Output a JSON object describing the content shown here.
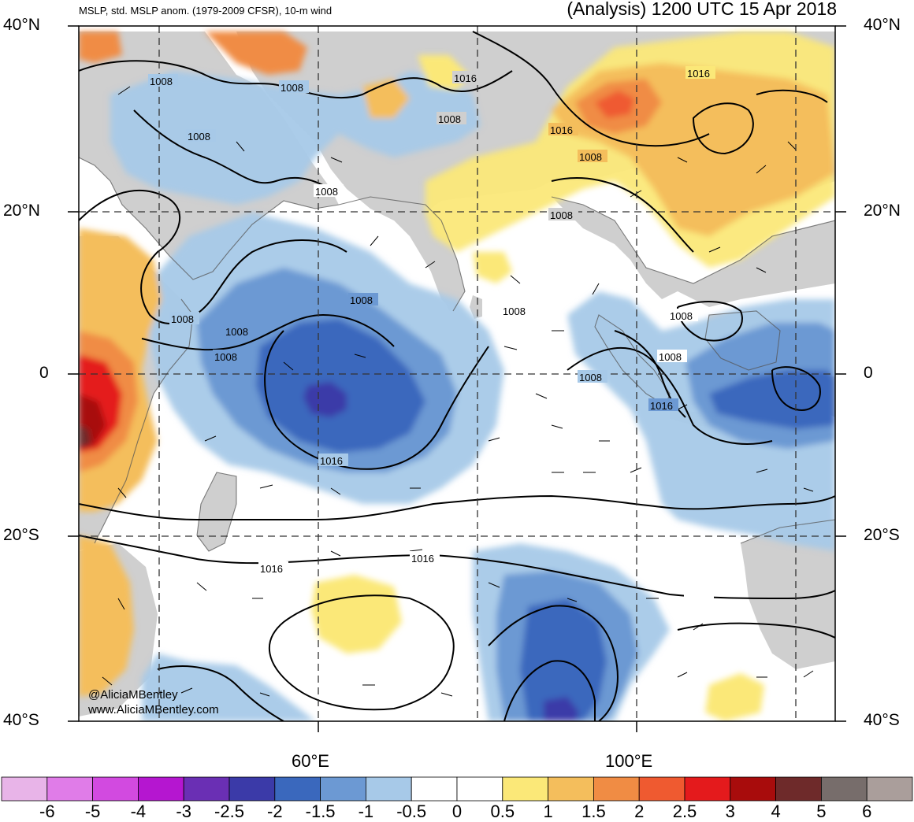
{
  "header": {
    "left_title": "MSLP, std. MSLP anom. (1979-2009 CFSR), 10-m wind",
    "right_title": "(Analysis) 1200 UTC 15 Apr 2018"
  },
  "axes": {
    "lat_labels": [
      "40°N",
      "20°N",
      "0",
      "20°S",
      "40°S"
    ],
    "lon_labels": [
      "60°E",
      "100°E"
    ],
    "extent": {
      "lon_min": 40,
      "lon_max": 135,
      "lat_min": -40,
      "lat_max": 40
    }
  },
  "isobars": {
    "labels": [
      "1008",
      "1008",
      "1008",
      "1016",
      "1008",
      "1016",
      "1016",
      "1008",
      "1008",
      "1008",
      "1008",
      "1008",
      "1008",
      "1008",
      "1008",
      "1008",
      "1008",
      "1008",
      "1016",
      "1016",
      "1016",
      "1016"
    ]
  },
  "credit": {
    "handle": "@AliciaMBentley",
    "website": "www.AliciaMBentley.com"
  },
  "colorbar": {
    "colors": [
      "#e8b4e8",
      "#e07ce8",
      "#d24ae0",
      "#b516d0",
      "#6a2fb4",
      "#3b3aa8",
      "#3a68bd",
      "#6c99d3",
      "#a7c9e8",
      "#ffffff",
      "#ffffff",
      "#fbe878",
      "#f4be5c",
      "#f08c44",
      "#ef5a30",
      "#e41a1c",
      "#a80c0c",
      "#6e2a2a",
      "#776d6b",
      "#aa9e9b"
    ],
    "labels": [
      "-6",
      "-5",
      "-4",
      "-3",
      "-2.5",
      "-2",
      "-1.5",
      "-1",
      "-0.5",
      "0",
      "0.5",
      "1",
      "1.5",
      "2",
      "2.5",
      "3",
      "4",
      "5",
      "6"
    ]
  },
  "legend_colors": {
    "land_gray": "#cfcfcf",
    "yellow": "#fbe878",
    "light_orange": "#f4be5c",
    "orange": "#f08c44",
    "red": "#e41a1c",
    "dark_red": "#a80c0c",
    "maroon": "#6e2a2a",
    "light_blue": "#a7c9e8",
    "mid_blue": "#6c99d3",
    "blue": "#3a68bd",
    "deep_blue": "#3b3aa8",
    "purple": "#6a2fb4"
  }
}
